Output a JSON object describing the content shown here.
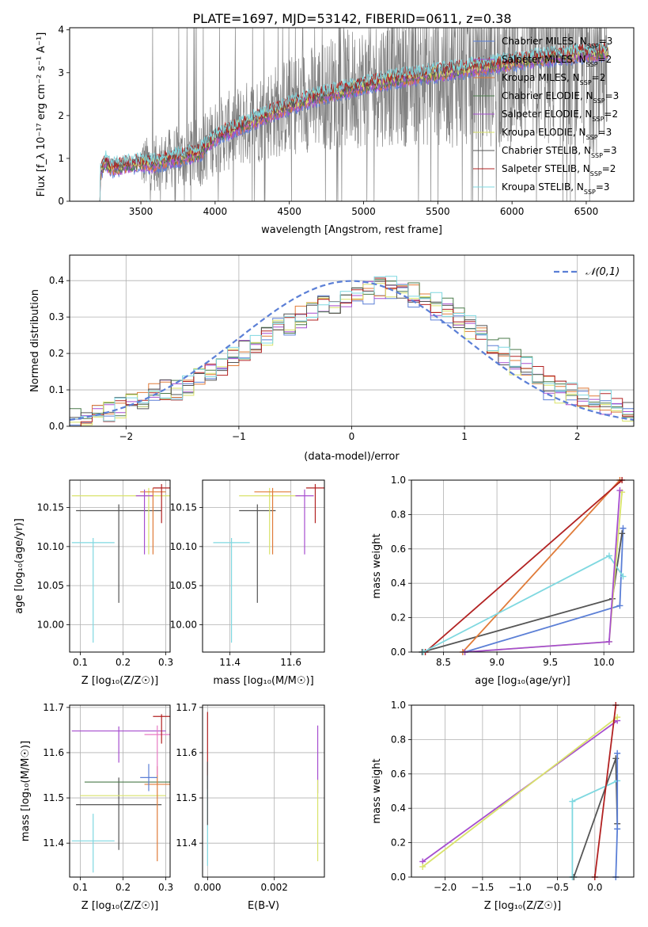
{
  "figure": {
    "title": "PLATE=1697, MJD=53142, FIBERID=0611, z=0.38"
  },
  "chart_data": [
    {
      "id": "spectrum",
      "type": "line",
      "xlabel": "wavelength [Angstrom, rest frame]",
      "ylabel": "Flux [f_λ 10⁻¹⁷ erg cm⁻² s⁻¹ A⁻¹]",
      "xlim": [
        3020,
        6820
      ],
      "ylim": [
        0,
        4.05
      ],
      "xticks": [
        3500,
        4000,
        4500,
        5000,
        5500,
        6000,
        6500
      ],
      "yticks": [
        0,
        1,
        2,
        3,
        4
      ],
      "grid": false,
      "legend": "top-right",
      "data_noise": {
        "x_start": 3500,
        "x_end": 6640,
        "y_low": 0,
        "y_high": 4.05
      },
      "model_shape": {
        "x": [
          3220,
          3260,
          3300,
          3400,
          3500,
          3600,
          3700,
          3800,
          3900,
          4000,
          4200,
          4400,
          4600,
          4800,
          5000,
          5200,
          5400,
          5600,
          5800,
          6000,
          6200,
          6400,
          6650
        ],
        "y": [
          0.62,
          0.95,
          0.78,
          0.85,
          0.9,
          0.88,
          1.0,
          1.05,
          1.15,
          1.5,
          1.8,
          2.1,
          2.35,
          2.55,
          2.7,
          2.85,
          2.95,
          3.05,
          3.15,
          3.25,
          3.35,
          3.42,
          3.5
        ]
      },
      "series": [
        {
          "name": "Chabrier MILES",
          "nssp": "3",
          "color": "#5b7fd6"
        },
        {
          "name": "Salpeter MILES",
          "nssp": "2",
          "color": "#a64ecf"
        },
        {
          "name": "Kroupa MILES",
          "nssp": "2",
          "color": "#e07b39"
        },
        {
          "name": "Chabrier ELODIE",
          "nssp": "3",
          "color": "#4a7a4a"
        },
        {
          "name": "Salpeter ELODIE",
          "nssp": "2",
          "color": "#a64ecf"
        },
        {
          "name": "Kroupa ELODIE",
          "nssp": "3",
          "color": "#d9e36a"
        },
        {
          "name": "Chabrier STELIB",
          "nssp": "3",
          "color": "#555555"
        },
        {
          "name": "Salpeter STELIB",
          "nssp": "2",
          "color": "#b22222"
        },
        {
          "name": "Kroupa STELIB",
          "nssp": "3",
          "color": "#7fd8e0"
        }
      ]
    },
    {
      "id": "residuals",
      "type": "line",
      "xlabel": "(data-model)/error",
      "ylabel": "Normed distribution",
      "xlim": [
        -2.5,
        2.5
      ],
      "ylim": [
        0,
        0.47
      ],
      "xticks": [
        -2,
        -1,
        0,
        1,
        2
      ],
      "yticks": [
        0.0,
        0.1,
        0.2,
        0.3,
        0.4
      ],
      "grid": true,
      "legend": "top-right",
      "gaussian": {
        "name": "𝒩(0,1)",
        "color": "#5b7fd6"
      },
      "histogram_bins": [
        -2.5,
        -2.4,
        -2.3,
        -2.2,
        -2.1,
        -2.0,
        -1.9,
        -1.8,
        -1.7,
        -1.6,
        -1.5,
        -1.4,
        -1.3,
        -1.2,
        -1.1,
        -1.0,
        -0.9,
        -0.8,
        -0.7,
        -0.6,
        -0.5,
        -0.4,
        -0.3,
        -0.2,
        -0.1,
        0.0,
        0.1,
        0.2,
        0.3,
        0.4,
        0.5,
        0.6,
        0.7,
        0.8,
        0.9,
        1.0,
        1.1,
        1.2,
        1.3,
        1.4,
        1.5,
        1.6,
        1.7,
        1.8,
        1.9,
        2.0,
        2.1,
        2.2,
        2.3,
        2.4,
        2.5
      ],
      "histogram_base": [
        0.02,
        0.025,
        0.03,
        0.04,
        0.05,
        0.06,
        0.07,
        0.09,
        0.1,
        0.1,
        0.11,
        0.13,
        0.15,
        0.17,
        0.19,
        0.21,
        0.23,
        0.25,
        0.27,
        0.28,
        0.3,
        0.31,
        0.33,
        0.34,
        0.35,
        0.36,
        0.37,
        0.38,
        0.38,
        0.37,
        0.36,
        0.34,
        0.33,
        0.31,
        0.29,
        0.27,
        0.25,
        0.22,
        0.2,
        0.17,
        0.15,
        0.13,
        0.11,
        0.1,
        0.09,
        0.08,
        0.07,
        0.06,
        0.05,
        0.04
      ],
      "series_colors": [
        "#5b7fd6",
        "#a64ecf",
        "#e07b39",
        "#4a7a4a",
        "#d9e36a",
        "#555555",
        "#b22222",
        "#7fd8e0"
      ]
    },
    {
      "id": "age-vs-Z",
      "type": "scatter",
      "xlabel": "Z [log₁₀(Z/Z☉)]",
      "ylabel": "age  [log₁₀(age/yr)]",
      "xlim": [
        0.075,
        0.31
      ],
      "ylim": [
        9.965,
        10.185
      ],
      "xticks": [
        0.1,
        0.2,
        0.3
      ],
      "yticks": [
        10.0,
        10.05,
        10.1,
        10.15
      ],
      "grid": true,
      "points": [
        {
          "x": 0.19,
          "y": 10.146,
          "xerr": 0.1,
          "yerr": [
            0.118,
            0.008
          ],
          "color": "#555555"
        },
        {
          "x": 0.13,
          "y": 10.105,
          "xerr": 0.05,
          "yerr": [
            0.128,
            0.006
          ],
          "color": "#7fd8e0"
        },
        {
          "x": 0.26,
          "y": 10.165,
          "xerr": 0.18,
          "yerr": [
            0.075,
            0.01
          ],
          "color": "#d9e36a"
        },
        {
          "x": 0.27,
          "y": 10.17,
          "xerr": 0.03,
          "yerr": [
            0.08,
            0.005
          ],
          "color": "#e07b39"
        },
        {
          "x": 0.25,
          "y": 10.165,
          "xerr": 0.02,
          "yerr": [
            0.075,
            0.008
          ],
          "color": "#a64ecf"
        },
        {
          "x": 0.29,
          "y": 10.175,
          "xerr": 0.02,
          "yerr": [
            0.045,
            0.005
          ],
          "color": "#b22222"
        }
      ]
    },
    {
      "id": "age-vs-mass",
      "type": "scatter",
      "xlabel": "mass [log₁₀(M/M☉)]",
      "ylabel": "",
      "xlim": [
        11.31,
        11.71
      ],
      "ylim": [
        9.965,
        10.185
      ],
      "xticks": [
        11.4,
        11.6
      ],
      "yticks": [
        10.0,
        10.05,
        10.1,
        10.15
      ],
      "grid": true,
      "points": [
        {
          "x": 11.49,
          "y": 10.146,
          "xerr": 0.06,
          "yerr": [
            0.118,
            0.008
          ],
          "color": "#555555"
        },
        {
          "x": 11.405,
          "y": 10.105,
          "xerr": 0.06,
          "yerr": [
            0.128,
            0.006
          ],
          "color": "#7fd8e0"
        },
        {
          "x": 11.53,
          "y": 10.165,
          "xerr": 0.1,
          "yerr": [
            0.075,
            0.01
          ],
          "color": "#d9e36a"
        },
        {
          "x": 11.54,
          "y": 10.17,
          "xerr": 0.06,
          "yerr": [
            0.08,
            0.005
          ],
          "color": "#e07b39"
        },
        {
          "x": 11.645,
          "y": 10.165,
          "xerr": 0.03,
          "yerr": [
            0.075,
            0.008
          ],
          "color": "#a64ecf"
        },
        {
          "x": 11.68,
          "y": 10.175,
          "xerr": 0.03,
          "yerr": [
            0.045,
            0.005
          ],
          "color": "#b22222"
        }
      ]
    },
    {
      "id": "mass-weight-vs-age",
      "type": "line",
      "xlabel": "age  [log₁₀(age/yr)]",
      "ylabel": "mass weight",
      "xlim": [
        8.2,
        10.28
      ],
      "ylim": [
        0,
        1.0
      ],
      "xticks": [
        8.5,
        9.0,
        9.5,
        10.0
      ],
      "yticks": [
        0.0,
        0.2,
        0.4,
        0.6,
        0.8,
        1.0
      ],
      "grid": true,
      "series": [
        {
          "color": "#5b7fd6",
          "x": [
            8.7,
            10.15,
            10.18
          ],
          "y": [
            0.0,
            0.27,
            0.72
          ]
        },
        {
          "color": "#555555",
          "x": [
            8.3,
            10.08,
            10.17
          ],
          "y": [
            0.0,
            0.31,
            0.69
          ]
        },
        {
          "color": "#e07b39",
          "x": [
            8.68,
            10.15
          ],
          "y": [
            0.0,
            1.0
          ]
        },
        {
          "color": "#b22222",
          "x": [
            8.33,
            10.17
          ],
          "y": [
            0.0,
            1.0
          ]
        },
        {
          "color": "#7fd8e0",
          "x": [
            8.31,
            10.05,
            10.18
          ],
          "y": [
            0.0,
            0.56,
            0.44
          ]
        },
        {
          "color": "#d9e36a",
          "x": [
            8.7,
            10.05,
            10.17
          ],
          "y": [
            0.0,
            0.06,
            0.93
          ]
        },
        {
          "color": "#a64ecf",
          "x": [
            8.7,
            10.05,
            10.15
          ],
          "y": [
            0.0,
            0.06,
            0.94
          ]
        }
      ]
    },
    {
      "id": "mass-vs-Z",
      "type": "scatter",
      "xlabel": "Z [log₁₀(Z/Z☉)]",
      "ylabel": "mass [log₁₀(M/M☉)]",
      "xlim": [
        0.075,
        0.31
      ],
      "ylim": [
        11.325,
        11.705
      ],
      "xticks": [
        0.1,
        0.2,
        0.3
      ],
      "yticks": [
        11.4,
        11.5,
        11.6,
        11.7
      ],
      "grid": true,
      "points": [
        {
          "x": 0.19,
          "y": 11.485,
          "xerr": 0.1,
          "yerr": [
            0.1,
            0.06
          ],
          "color": "#555555"
        },
        {
          "x": 0.13,
          "y": 11.405,
          "xerr": 0.05,
          "yerr": [
            0.07,
            0.06
          ],
          "color": "#7fd8e0"
        },
        {
          "x": 0.2,
          "y": 11.505,
          "xerr": 0.1,
          "yerr": [
            0.0,
            0.0
          ],
          "color": "#d9e36a"
        },
        {
          "x": 0.21,
          "y": 11.535,
          "xerr": 0.1,
          "yerr": [
            0.0,
            0.0
          ],
          "color": "#4a7a4a"
        },
        {
          "x": 0.28,
          "y": 11.53,
          "xerr": 0.03,
          "yerr": [
            0.17,
            0.04
          ],
          "color": "#e07b39"
        },
        {
          "x": 0.26,
          "y": 11.545,
          "xerr": 0.02,
          "yerr": [
            0.03,
            0.03
          ],
          "color": "#5b7fd6"
        },
        {
          "x": 0.19,
          "y": 11.648,
          "xerr": 0.11,
          "yerr": [
            0.07,
            0.01
          ],
          "color": "#a64ecf"
        },
        {
          "x": 0.28,
          "y": 11.64,
          "xerr": 0.03,
          "yerr": [
            0.09,
            0.02
          ],
          "color": "#e87ac4"
        },
        {
          "x": 0.29,
          "y": 11.68,
          "xerr": 0.02,
          "yerr": [
            0.06,
            0.005
          ],
          "color": "#b22222"
        }
      ]
    },
    {
      "id": "mass-vs-ebv",
      "type": "scatter",
      "xlabel": "E(B-V)",
      "ylabel": "",
      "xlim": [
        -0.00015,
        0.0035
      ],
      "ylim": [
        11.325,
        11.705
      ],
      "xticks": [
        0.0,
        0.002
      ],
      "yticks": [
        11.4,
        11.5,
        11.6,
        11.7
      ],
      "grid": true,
      "points": [
        {
          "x": 0.0,
          "y": 11.6,
          "yerr": [
            0.08,
            0.09
          ],
          "color": "#b22222"
        },
        {
          "x": 0.0,
          "y": 11.45,
          "yerr": [
            0.1,
            0.1
          ],
          "color": "#7fd8e0"
        },
        {
          "x": 0.0,
          "y": 11.5,
          "yerr": [
            0.06,
            0.08
          ],
          "color": "#555555"
        },
        {
          "x": 0.0033,
          "y": 11.6,
          "yerr": [
            0.09,
            0.06
          ],
          "color": "#a64ecf"
        },
        {
          "x": 0.0033,
          "y": 11.45,
          "yerr": [
            0.09,
            0.09
          ],
          "color": "#d9e36a"
        }
      ]
    },
    {
      "id": "mass-weight-vs-Z",
      "type": "line",
      "xlabel": "Z [log₁₀(Z/Z☉)]",
      "ylabel": "mass weight",
      "xlim": [
        -2.45,
        0.52
      ],
      "ylim": [
        0,
        1.0
      ],
      "xticks": [
        -2.0,
        -1.5,
        -1.0,
        -0.5,
        0.0
      ],
      "yticks": [
        0.0,
        0.2,
        0.4,
        0.6,
        0.8,
        1.0
      ],
      "grid": true,
      "series": [
        {
          "color": "#a64ecf",
          "x": [
            -2.3,
            0.3
          ],
          "y": [
            0.09,
            0.91
          ]
        },
        {
          "color": "#d9e36a",
          "x": [
            -2.3,
            0.3
          ],
          "y": [
            0.06,
            0.93
          ]
        },
        {
          "color": "#555555",
          "x": [
            -0.28,
            0.28,
            0.3
          ],
          "y": [
            0.0,
            0.69,
            0.31
          ]
        },
        {
          "color": "#7fd8e0",
          "x": [
            -0.3,
            -0.3,
            0.3
          ],
          "y": [
            0.0,
            0.44,
            0.56
          ]
        },
        {
          "color": "#b22222",
          "x": [
            0.0,
            0.28
          ],
          "y": [
            0.0,
            1.0
          ]
        },
        {
          "color": "#5b7fd6",
          "x": [
            0.28,
            0.3,
            0.3
          ],
          "y": [
            0.0,
            0.28,
            0.72
          ]
        }
      ]
    }
  ]
}
